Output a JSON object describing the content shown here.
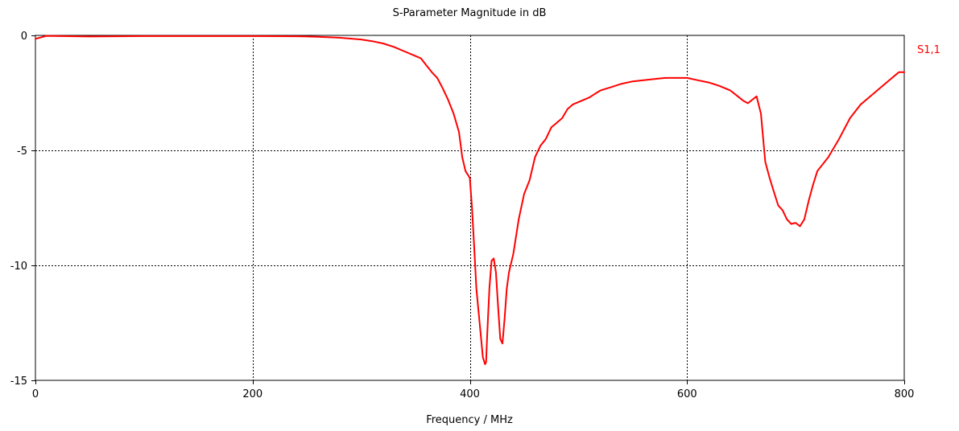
{
  "chart_data": {
    "type": "line",
    "title": "S-Parameter Magnitude in dB",
    "xlabel": "Frequency / MHz",
    "ylabel": "",
    "xlim": [
      0,
      800
    ],
    "ylim": [
      -15,
      0
    ],
    "x_ticks": [
      0,
      200,
      400,
      600,
      800
    ],
    "y_ticks": [
      0,
      -5,
      -10,
      -15
    ],
    "grid": true,
    "legend_position": "right",
    "series": [
      {
        "name": "S1,1",
        "color": "#ff0000",
        "x": [
          0,
          10,
          50,
          100,
          150,
          200,
          240,
          260,
          280,
          300,
          310,
          320,
          330,
          340,
          350,
          355,
          360,
          365,
          370,
          375,
          380,
          385,
          390,
          393,
          396,
          400,
          402,
          404,
          406,
          408,
          410,
          412,
          414,
          415,
          416,
          418,
          420,
          422,
          424,
          426,
          428,
          430,
          432,
          434,
          436,
          440,
          445,
          450,
          455,
          460,
          465,
          470,
          475,
          480,
          485,
          490,
          495,
          500,
          510,
          520,
          530,
          540,
          550,
          560,
          570,
          580,
          590,
          600,
          610,
          620,
          630,
          640,
          648,
          652,
          656,
          660,
          664,
          668,
          672,
          676,
          680,
          684,
          688,
          692,
          696,
          700,
          704,
          708,
          712,
          716,
          720,
          730,
          740,
          750,
          760,
          770,
          780,
          790,
          795,
          800
        ],
        "y": [
          -0.15,
          -0.02,
          -0.05,
          -0.03,
          -0.03,
          -0.03,
          -0.04,
          -0.06,
          -0.1,
          -0.18,
          -0.25,
          -0.35,
          -0.5,
          -0.7,
          -0.9,
          -1.0,
          -1.3,
          -1.6,
          -1.85,
          -2.3,
          -2.8,
          -3.4,
          -4.2,
          -5.3,
          -5.9,
          -6.2,
          -7.5,
          -9.2,
          -11.0,
          -12.0,
          -13.0,
          -14.0,
          -14.3,
          -14.2,
          -13.0,
          -11.0,
          -9.8,
          -9.7,
          -10.3,
          -11.8,
          -13.2,
          -13.4,
          -12.3,
          -11.0,
          -10.3,
          -9.5,
          -8.0,
          -6.9,
          -6.3,
          -5.3,
          -4.8,
          -4.5,
          -4.0,
          -3.8,
          -3.6,
          -3.2,
          -3.0,
          -2.9,
          -2.7,
          -2.4,
          -2.25,
          -2.1,
          -2.0,
          -1.95,
          -1.9,
          -1.85,
          -1.85,
          -1.85,
          -1.95,
          -2.05,
          -2.2,
          -2.4,
          -2.7,
          -2.85,
          -2.95,
          -2.8,
          -2.65,
          -3.4,
          -5.5,
          -6.2,
          -6.8,
          -7.4,
          -7.6,
          -8.0,
          -8.2,
          -8.15,
          -8.3,
          -8.0,
          -7.2,
          -6.5,
          -5.9,
          -5.3,
          -4.5,
          -3.6,
          -3.0,
          -2.6,
          -2.2,
          -1.8,
          -1.6,
          -1.6
        ]
      }
    ]
  }
}
